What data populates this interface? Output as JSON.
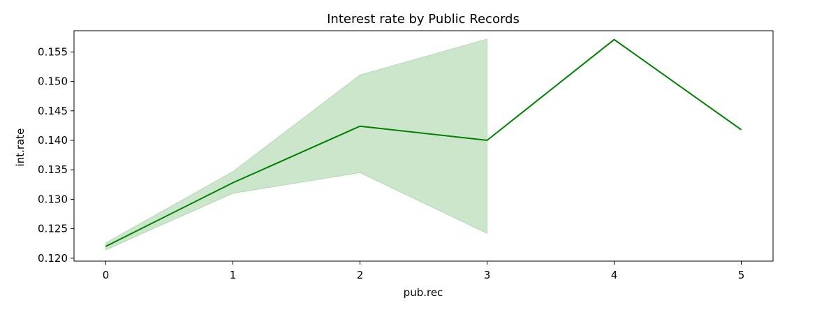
{
  "chart_data": {
    "type": "line",
    "title": "Interest rate by Public Records",
    "xlabel": "pub.rec",
    "ylabel": "int.rate",
    "x": [
      0,
      1,
      2,
      3,
      4,
      5
    ],
    "xticks": [
      "0",
      "1",
      "2",
      "3",
      "4",
      "5"
    ],
    "yticks": [
      "0.120",
      "0.125",
      "0.130",
      "0.135",
      "0.140",
      "0.145",
      "0.150",
      "0.155"
    ],
    "ytick_values": [
      0.12,
      0.125,
      0.13,
      0.135,
      0.14,
      0.145,
      0.15,
      0.155
    ],
    "xlim": [
      -0.25,
      5.25
    ],
    "ylim": [
      0.1195,
      0.1586
    ],
    "grid": false,
    "legend": "none",
    "series": [
      {
        "values": [
          0.122,
          0.1328,
          0.1424,
          0.14,
          0.1571,
          0.1418
        ],
        "color": "#008000",
        "ci_lower": [
          0.1214,
          0.131,
          0.1345,
          0.1242,
          null,
          null
        ],
        "ci_upper": [
          0.1226,
          0.1347,
          0.1511,
          0.1572,
          null,
          null
        ],
        "ci_color": "#008000"
      }
    ]
  }
}
